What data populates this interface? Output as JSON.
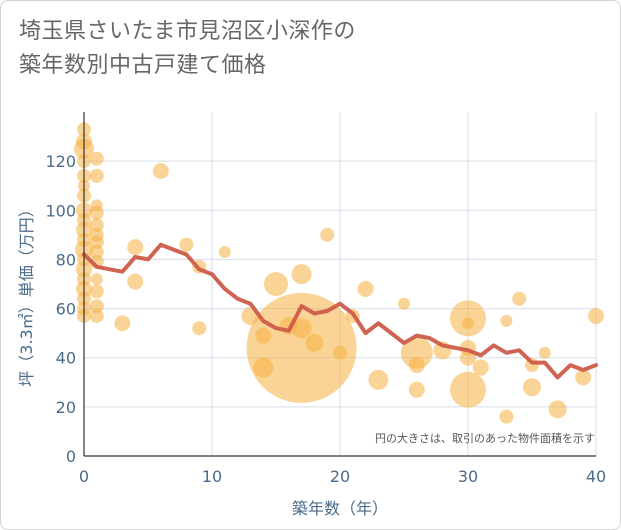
{
  "title_line1": "埼玉県さいたま市見沼区小深作の",
  "title_line2": "築年数別中古戸建て価格",
  "chart_data": {
    "type": "scatter",
    "title": "埼玉県さいたま市見沼区小深作の築年数別中古戸建て価格",
    "xlabel": "築年数（年）",
    "ylabel": "坪（3.3㎡）単価（万円）",
    "xlim": [
      0,
      40
    ],
    "ylim": [
      0,
      140
    ],
    "xticks": [
      0,
      10,
      20,
      30,
      40
    ],
    "yticks": [
      0,
      20,
      40,
      60,
      80,
      100,
      120
    ],
    "grid": true,
    "note": "円の大きさは、取引のあった物件面積を示す",
    "colors": {
      "bubble": "#f5b041",
      "line": "#cd5c4a",
      "grid": "#d6dde8",
      "axis_text": "#4a6b8a"
    },
    "bubbles": [
      {
        "x": 0,
        "y": 133,
        "r": 7
      },
      {
        "x": 0,
        "y": 128,
        "r": 8
      },
      {
        "x": 0,
        "y": 125,
        "r": 10
      },
      {
        "x": 0,
        "y": 120,
        "r": 7
      },
      {
        "x": 0,
        "y": 114,
        "r": 7
      },
      {
        "x": 0,
        "y": 110,
        "r": 6
      },
      {
        "x": 0,
        "y": 106,
        "r": 7
      },
      {
        "x": 0,
        "y": 100,
        "r": 8
      },
      {
        "x": 0,
        "y": 96,
        "r": 7
      },
      {
        "x": 0,
        "y": 92,
        "r": 8
      },
      {
        "x": 0,
        "y": 88,
        "r": 7
      },
      {
        "x": 0,
        "y": 84,
        "r": 9
      },
      {
        "x": 0,
        "y": 80,
        "r": 7
      },
      {
        "x": 0,
        "y": 76,
        "r": 8
      },
      {
        "x": 0,
        "y": 72,
        "r": 7
      },
      {
        "x": 0,
        "y": 68,
        "r": 8
      },
      {
        "x": 0,
        "y": 64,
        "r": 7
      },
      {
        "x": 0,
        "y": 60,
        "r": 7
      },
      {
        "x": 0,
        "y": 57,
        "r": 7
      },
      {
        "x": 1,
        "y": 121,
        "r": 7
      },
      {
        "x": 1,
        "y": 114,
        "r": 7
      },
      {
        "x": 1,
        "y": 102,
        "r": 6
      },
      {
        "x": 1,
        "y": 99,
        "r": 7
      },
      {
        "x": 1,
        "y": 94,
        "r": 7
      },
      {
        "x": 1,
        "y": 90,
        "r": 7
      },
      {
        "x": 1,
        "y": 87,
        "r": 7
      },
      {
        "x": 1,
        "y": 83,
        "r": 7
      },
      {
        "x": 1,
        "y": 79,
        "r": 7
      },
      {
        "x": 1,
        "y": 72,
        "r": 6
      },
      {
        "x": 1,
        "y": 67,
        "r": 7
      },
      {
        "x": 1,
        "y": 61,
        "r": 7
      },
      {
        "x": 1,
        "y": 57,
        "r": 7
      },
      {
        "x": 3,
        "y": 54,
        "r": 8
      },
      {
        "x": 4,
        "y": 85,
        "r": 8
      },
      {
        "x": 4,
        "y": 71,
        "r": 8
      },
      {
        "x": 6,
        "y": 116,
        "r": 8
      },
      {
        "x": 8,
        "y": 86,
        "r": 7
      },
      {
        "x": 9,
        "y": 77,
        "r": 7
      },
      {
        "x": 9,
        "y": 52,
        "r": 7
      },
      {
        "x": 11,
        "y": 83,
        "r": 6
      },
      {
        "x": 13,
        "y": 57,
        "r": 9
      },
      {
        "x": 14,
        "y": 49,
        "r": 8
      },
      {
        "x": 14,
        "y": 36,
        "r": 10
      },
      {
        "x": 15,
        "y": 70,
        "r": 12
      },
      {
        "x": 16,
        "y": 53,
        "r": 9
      },
      {
        "x": 17,
        "y": 74,
        "r": 10
      },
      {
        "x": 17,
        "y": 44,
        "r": 55
      },
      {
        "x": 17,
        "y": 52,
        "r": 10
      },
      {
        "x": 18,
        "y": 46,
        "r": 9
      },
      {
        "x": 19,
        "y": 90,
        "r": 7
      },
      {
        "x": 20,
        "y": 42,
        "r": 7
      },
      {
        "x": 21,
        "y": 57,
        "r": 7
      },
      {
        "x": 22,
        "y": 68,
        "r": 8
      },
      {
        "x": 23,
        "y": 31,
        "r": 10
      },
      {
        "x": 25,
        "y": 62,
        "r": 6
      },
      {
        "x": 26,
        "y": 42,
        "r": 16
      },
      {
        "x": 26,
        "y": 37,
        "r": 8
      },
      {
        "x": 26,
        "y": 27,
        "r": 8
      },
      {
        "x": 28,
        "y": 43,
        "r": 9
      },
      {
        "x": 30,
        "y": 56,
        "r": 18
      },
      {
        "x": 30,
        "y": 54,
        "r": 6
      },
      {
        "x": 30,
        "y": 44,
        "r": 8
      },
      {
        "x": 30,
        "y": 40,
        "r": 8
      },
      {
        "x": 30,
        "y": 27,
        "r": 18
      },
      {
        "x": 31,
        "y": 36,
        "r": 8
      },
      {
        "x": 33,
        "y": 55,
        "r": 6
      },
      {
        "x": 33,
        "y": 16,
        "r": 7
      },
      {
        "x": 34,
        "y": 64,
        "r": 7
      },
      {
        "x": 35,
        "y": 28,
        "r": 9
      },
      {
        "x": 35,
        "y": 37,
        "r": 7
      },
      {
        "x": 36,
        "y": 42,
        "r": 6
      },
      {
        "x": 37,
        "y": 19,
        "r": 9
      },
      {
        "x": 39,
        "y": 32,
        "r": 8
      },
      {
        "x": 40,
        "y": 57,
        "r": 8
      }
    ],
    "line": {
      "x": [
        0,
        1,
        2,
        3,
        4,
        5,
        6,
        7,
        8,
        9,
        10,
        11,
        12,
        13,
        14,
        15,
        16,
        17,
        18,
        19,
        20,
        21,
        22,
        23,
        24,
        25,
        26,
        27,
        28,
        29,
        30,
        31,
        32,
        33,
        34,
        35,
        36,
        37,
        38,
        39,
        40
      ],
      "y": [
        82,
        77,
        76,
        75,
        81,
        80,
        86,
        84,
        82,
        76,
        74,
        68,
        64,
        62,
        55,
        52,
        51,
        61,
        58,
        59,
        62,
        58,
        50,
        54,
        50,
        46,
        49,
        48,
        45,
        44,
        43,
        41,
        45,
        42,
        43,
        38,
        38,
        32,
        37,
        35,
        37
      ]
    }
  }
}
